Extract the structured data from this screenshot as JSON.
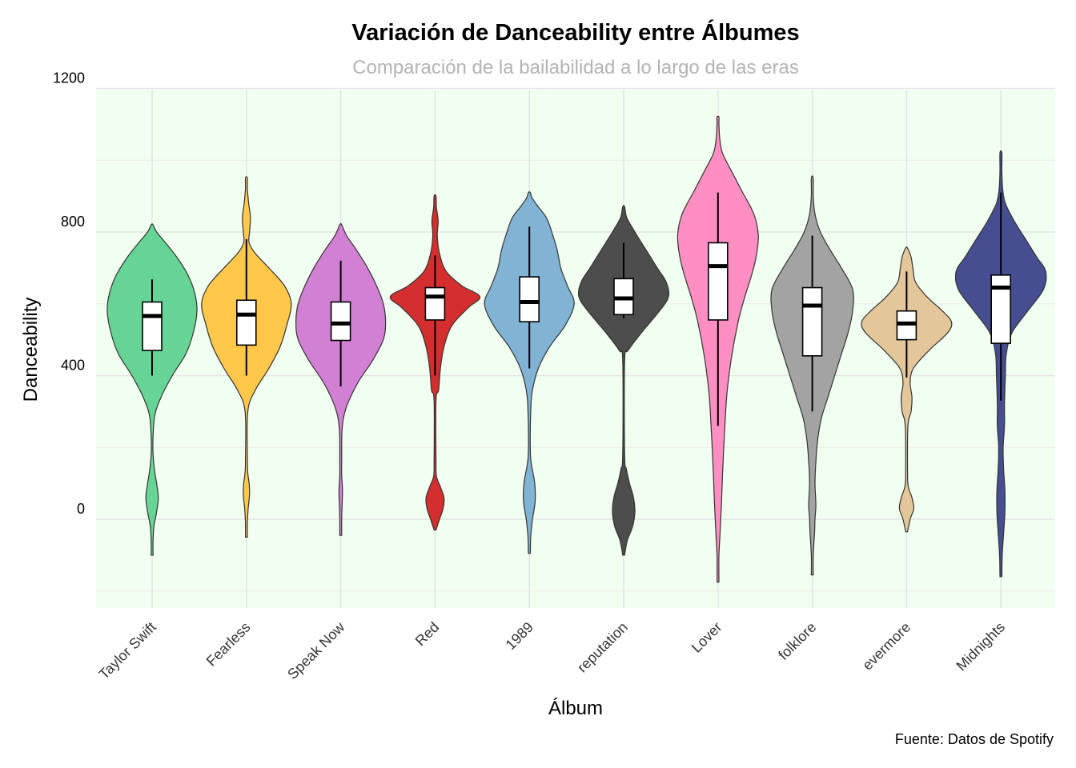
{
  "chart_data": {
    "type": "violin",
    "title": "Variación de Danceability entre Álbumes",
    "subtitle": "Comparación de la bailabilidad a lo largo de las eras",
    "xlabel": "Álbum",
    "ylabel": "Danceability",
    "caption": "Fuente: Datos de Spotify",
    "ylim": [
      -250,
      1200
    ],
    "yticks": [
      {
        "value": 0,
        "label": "0"
      },
      {
        "value": 400,
        "label": "400"
      },
      {
        "value": 800,
        "label": "800"
      },
      {
        "value": 1200,
        "label": "1200"
      }
    ],
    "grid": true,
    "panel_background": "#f0fff0",
    "albums": [
      {
        "name": "Taylor Swift",
        "color": "#66d495",
        "box": {
          "q1": 470,
          "median": 566,
          "q3": 605,
          "whisker_low": 400,
          "whisker_high": 668
        },
        "violin": [
          [
            -100,
            0
          ],
          [
            -60,
            0.02
          ],
          [
            -20,
            0.04
          ],
          [
            20,
            0.1
          ],
          [
            60,
            0.14
          ],
          [
            100,
            0.1
          ],
          [
            140,
            0.05
          ],
          [
            180,
            0.02
          ],
          [
            230,
            0.02
          ],
          [
            290,
            0.06
          ],
          [
            340,
            0.2
          ],
          [
            400,
            0.45
          ],
          [
            460,
            0.75
          ],
          [
            520,
            0.92
          ],
          [
            580,
            1.0
          ],
          [
            630,
            0.95
          ],
          [
            680,
            0.8
          ],
          [
            730,
            0.55
          ],
          [
            770,
            0.3
          ],
          [
            800,
            0.1
          ],
          [
            820,
            0.01
          ]
        ]
      },
      {
        "name": "Fearless",
        "color": "#ffc84a",
        "box": {
          "q1": 485,
          "median": 570,
          "q3": 610,
          "whisker_low": 400,
          "whisker_high": 780
        },
        "violin": [
          [
            -50,
            0
          ],
          [
            -10,
            0.02
          ],
          [
            30,
            0.04
          ],
          [
            70,
            0.07
          ],
          [
            100,
            0.06
          ],
          [
            130,
            0.03
          ],
          [
            170,
            0.02
          ],
          [
            300,
            0.03
          ],
          [
            360,
            0.2
          ],
          [
            420,
            0.5
          ],
          [
            480,
            0.75
          ],
          [
            540,
            0.9
          ],
          [
            600,
            1.0
          ],
          [
            650,
            0.85
          ],
          [
            700,
            0.5
          ],
          [
            740,
            0.2
          ],
          [
            770,
            0.06
          ],
          [
            800,
            0.07
          ],
          [
            840,
            0.09
          ],
          [
            880,
            0.05
          ],
          [
            920,
            0.02
          ],
          [
            950,
            0
          ]
        ]
      },
      {
        "name": "Speak Now",
        "color": "#d180d3",
        "box": {
          "q1": 498,
          "median": 545,
          "q3": 605,
          "whisker_low": 370,
          "whisker_high": 720
        },
        "violin": [
          [
            -45,
            0
          ],
          [
            0,
            0.02
          ],
          [
            40,
            0.03
          ],
          [
            80,
            0.04
          ],
          [
            120,
            0.02
          ],
          [
            160,
            0.02
          ],
          [
            250,
            0.03
          ],
          [
            310,
            0.12
          ],
          [
            380,
            0.38
          ],
          [
            440,
            0.7
          ],
          [
            500,
            0.95
          ],
          [
            550,
            1.0
          ],
          [
            600,
            0.95
          ],
          [
            650,
            0.8
          ],
          [
            700,
            0.6
          ],
          [
            750,
            0.35
          ],
          [
            790,
            0.13
          ],
          [
            820,
            0
          ]
        ]
      },
      {
        "name": "Red",
        "color": "#d42e2e",
        "box": {
          "q1": 555,
          "median": 620,
          "q3": 645,
          "whisker_low": 400,
          "whisker_high": 735
        },
        "violin": [
          [
            -30,
            0
          ],
          [
            0,
            0.1
          ],
          [
            30,
            0.18
          ],
          [
            60,
            0.2
          ],
          [
            90,
            0.12
          ],
          [
            120,
            0.03
          ],
          [
            160,
            0.02
          ],
          [
            330,
            0.02
          ],
          [
            360,
            0.08
          ],
          [
            420,
            0.12
          ],
          [
            480,
            0.2
          ],
          [
            540,
            0.38
          ],
          [
            590,
            0.75
          ],
          [
            620,
            1.0
          ],
          [
            650,
            0.6
          ],
          [
            690,
            0.25
          ],
          [
            740,
            0.1
          ],
          [
            790,
            0.05
          ],
          [
            830,
            0.07
          ],
          [
            870,
            0.03
          ],
          [
            900,
            0
          ]
        ]
      },
      {
        "name": "1989",
        "color": "#80b3d4",
        "box": {
          "q1": 550,
          "median": 605,
          "q3": 675,
          "whisker_low": 420,
          "whisker_high": 815
        },
        "violin": [
          [
            -95,
            0
          ],
          [
            -50,
            0.03
          ],
          [
            0,
            0.07
          ],
          [
            50,
            0.13
          ],
          [
            100,
            0.12
          ],
          [
            150,
            0.05
          ],
          [
            190,
            0.02
          ],
          [
            300,
            0.03
          ],
          [
            360,
            0.07
          ],
          [
            420,
            0.2
          ],
          [
            480,
            0.45
          ],
          [
            540,
            0.8
          ],
          [
            600,
            1.0
          ],
          [
            650,
            0.85
          ],
          [
            700,
            0.7
          ],
          [
            750,
            0.62
          ],
          [
            800,
            0.5
          ],
          [
            840,
            0.38
          ],
          [
            870,
            0.2
          ],
          [
            895,
            0.06
          ],
          [
            910,
            0
          ]
        ]
      },
      {
        "name": "reputation",
        "color": "#4d4d4d",
        "box": {
          "q1": 570,
          "median": 615,
          "q3": 670,
          "whisker_low": 560,
          "whisker_high": 770
        },
        "violin": [
          [
            -100,
            0
          ],
          [
            -60,
            0.08
          ],
          [
            -20,
            0.2
          ],
          [
            20,
            0.25
          ],
          [
            60,
            0.22
          ],
          [
            100,
            0.13
          ],
          [
            140,
            0.06
          ],
          [
            180,
            0.02
          ],
          [
            440,
            0.02
          ],
          [
            470,
            0.1
          ],
          [
            520,
            0.4
          ],
          [
            580,
            0.8
          ],
          [
            620,
            1.0
          ],
          [
            660,
            0.95
          ],
          [
            700,
            0.75
          ],
          [
            750,
            0.5
          ],
          [
            800,
            0.25
          ],
          [
            840,
            0.07
          ],
          [
            870,
            0
          ]
        ]
      },
      {
        "name": "Lover",
        "color": "#ff8fc2",
        "box": {
          "q1": 555,
          "median": 705,
          "q3": 770,
          "whisker_low": 260,
          "whisker_high": 910
        },
        "violin": [
          [
            -175,
            0
          ],
          [
            -100,
            0.02
          ],
          [
            -30,
            0.05
          ],
          [
            50,
            0.08
          ],
          [
            150,
            0.11
          ],
          [
            250,
            0.15
          ],
          [
            350,
            0.2
          ],
          [
            450,
            0.3
          ],
          [
            550,
            0.45
          ],
          [
            620,
            0.6
          ],
          [
            680,
            0.75
          ],
          [
            730,
            0.85
          ],
          [
            790,
            0.9
          ],
          [
            850,
            0.8
          ],
          [
            910,
            0.55
          ],
          [
            970,
            0.3
          ],
          [
            1020,
            0.1
          ],
          [
            1060,
            0.04
          ],
          [
            1100,
            0.02
          ],
          [
            1120,
            0
          ]
        ]
      },
      {
        "name": "folklore",
        "color": "#a3a3a3",
        "box": {
          "q1": 455,
          "median": 595,
          "q3": 645,
          "whisker_low": 300,
          "whisker_high": 790
        },
        "violin": [
          [
            -155,
            0
          ],
          [
            -100,
            0.02
          ],
          [
            -40,
            0.05
          ],
          [
            0,
            0.06
          ],
          [
            40,
            0.08
          ],
          [
            100,
            0.06
          ],
          [
            160,
            0.08
          ],
          [
            220,
            0.12
          ],
          [
            280,
            0.2
          ],
          [
            340,
            0.35
          ],
          [
            400,
            0.5
          ],
          [
            460,
            0.65
          ],
          [
            520,
            0.8
          ],
          [
            580,
            0.9
          ],
          [
            640,
            0.9
          ],
          [
            700,
            0.65
          ],
          [
            750,
            0.4
          ],
          [
            800,
            0.18
          ],
          [
            850,
            0.06
          ],
          [
            900,
            0.02
          ],
          [
            950,
            0
          ]
        ]
      },
      {
        "name": "evermore",
        "color": "#e3c699",
        "box": {
          "q1": 500,
          "median": 545,
          "q3": 580,
          "whisker_low": 395,
          "whisker_high": 690
        },
        "violin": [
          [
            -35,
            0
          ],
          [
            0,
            0.08
          ],
          [
            30,
            0.16
          ],
          [
            60,
            0.12
          ],
          [
            90,
            0.04
          ],
          [
            130,
            0.02
          ],
          [
            260,
            0.03
          ],
          [
            300,
            0.1
          ],
          [
            340,
            0.12
          ],
          [
            380,
            0.08
          ],
          [
            420,
            0.15
          ],
          [
            470,
            0.5
          ],
          [
            520,
            0.92
          ],
          [
            550,
            1.0
          ],
          [
            580,
            0.8
          ],
          [
            620,
            0.45
          ],
          [
            660,
            0.2
          ],
          [
            700,
            0.14
          ],
          [
            730,
            0.1
          ],
          [
            755,
            0
          ]
        ]
      },
      {
        "name": "Midnights",
        "color": "#464d91",
        "box": {
          "q1": 490,
          "median": 645,
          "q3": 680,
          "whisker_low": 330,
          "whisker_high": 910
        },
        "violin": [
          [
            -160,
            0
          ],
          [
            -100,
            0.03
          ],
          [
            -40,
            0.06
          ],
          [
            20,
            0.09
          ],
          [
            80,
            0.09
          ],
          [
            140,
            0.06
          ],
          [
            200,
            0.05
          ],
          [
            260,
            0.08
          ],
          [
            320,
            0.08
          ],
          [
            400,
            0.1
          ],
          [
            460,
            0.12
          ],
          [
            520,
            0.25
          ],
          [
            580,
            0.6
          ],
          [
            640,
            0.95
          ],
          [
            690,
            1.0
          ],
          [
            730,
            0.8
          ],
          [
            780,
            0.55
          ],
          [
            830,
            0.3
          ],
          [
            880,
            0.1
          ],
          [
            920,
            0.04
          ],
          [
            970,
            0.02
          ],
          [
            1020,
            0
          ]
        ]
      }
    ]
  }
}
